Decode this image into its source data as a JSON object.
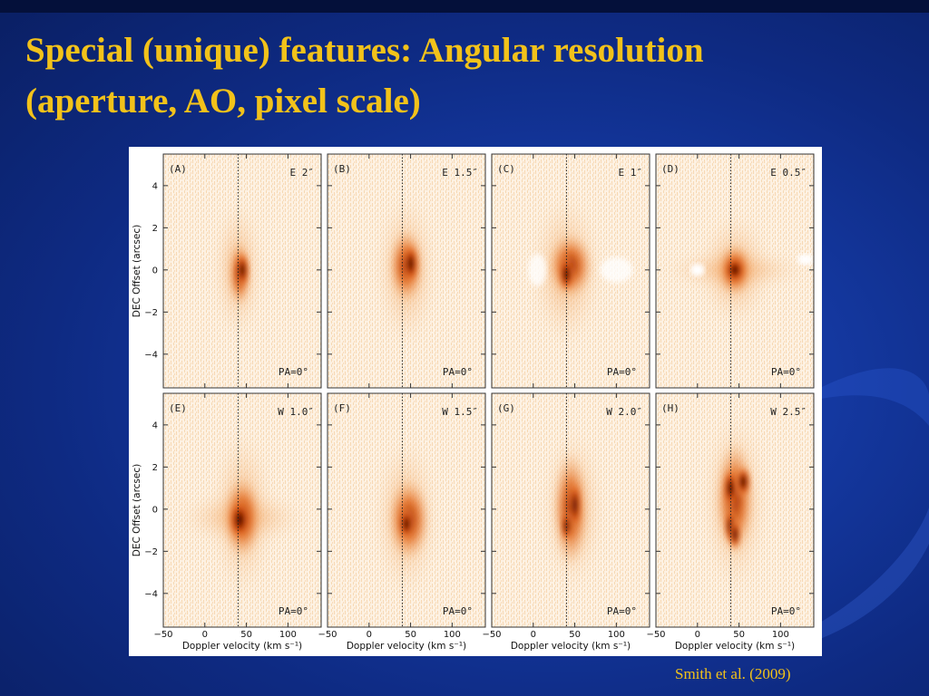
{
  "slide": {
    "title_line1": "Special (unique) features: Angular resolution",
    "title_line2": "(aperture, AO, pixel scale)",
    "citation": "Smith et al. (2009)"
  },
  "figure": {
    "ylabel": "DEC Offset (arcsec)",
    "xlabel": "Doppler velocity (km s⁻¹)",
    "xticks": [
      "−50",
      "0",
      "50",
      "100"
    ],
    "yticks": [
      "4",
      "2",
      "0",
      "−2",
      "−4"
    ],
    "panels": [
      {
        "letter": "(A)",
        "offset": "E 2″",
        "pa": "PA=0°"
      },
      {
        "letter": "(B)",
        "offset": "E 1.5″",
        "pa": "PA=0°"
      },
      {
        "letter": "(C)",
        "offset": "E 1″",
        "pa": "PA=0°"
      },
      {
        "letter": "(D)",
        "offset": "E 0.5″",
        "pa": "PA=0°"
      },
      {
        "letter": "(E)",
        "offset": "W 1.0″",
        "pa": "PA=0°"
      },
      {
        "letter": "(F)",
        "offset": "W 1.5″",
        "pa": "PA=0°"
      },
      {
        "letter": "(G)",
        "offset": "W 2.0″",
        "pa": "PA=0°"
      },
      {
        "letter": "(H)",
        "offset": "W 2.5″",
        "pa": "PA=0°"
      }
    ]
  }
}
